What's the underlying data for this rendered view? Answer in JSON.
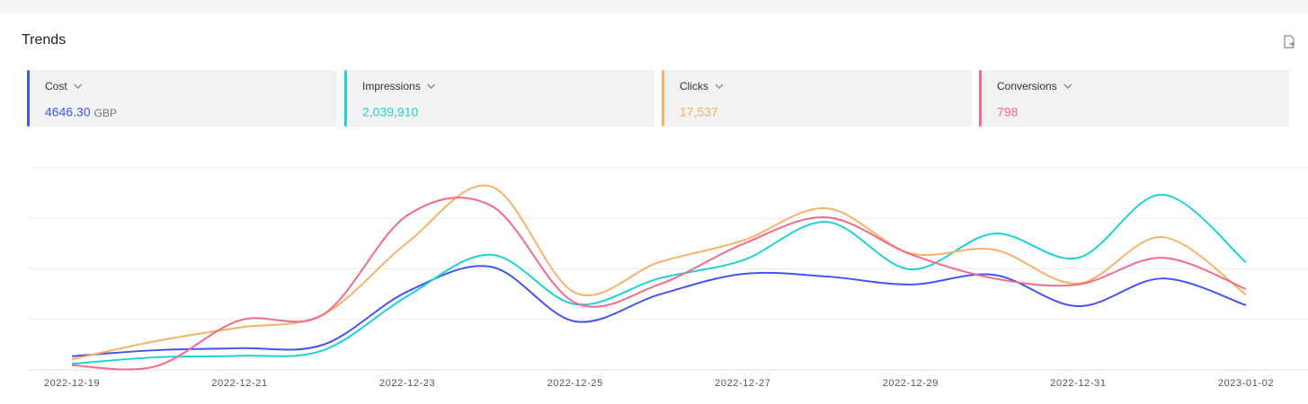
{
  "chart_data": {
    "type": "line",
    "title": "Trends",
    "categories": [
      "2022-12-19",
      null,
      "2022-12-21",
      null,
      "2022-12-23",
      null,
      "2022-12-25",
      null,
      "2022-12-27",
      null,
      "2022-12-29",
      null,
      "2022-12-31",
      null,
      "2023-01-02"
    ],
    "series": [
      {
        "name": "Cost",
        "color": "#4355f0",
        "values": [
          0.27,
          0.39,
          0.43,
          0.5,
          1.55,
          2.04,
          0.96,
          1.49,
          1.9,
          1.85,
          1.69,
          1.88,
          1.26,
          1.81,
          1.28
        ]
      },
      {
        "name": "Impressions",
        "color": "#1fd0d6",
        "values": [
          0.12,
          0.25,
          0.28,
          0.39,
          1.46,
          2.28,
          1.3,
          1.81,
          2.17,
          2.93,
          1.99,
          2.7,
          2.22,
          3.47,
          2.13
        ]
      },
      {
        "name": "Clicks",
        "color": "#f7b26a",
        "values": [
          0.21,
          0.57,
          0.84,
          1.1,
          2.52,
          3.63,
          1.53,
          2.13,
          2.56,
          3.2,
          2.31,
          2.38,
          1.71,
          2.63,
          1.49
        ]
      },
      {
        "name": "Conversions",
        "color": "#f46b89",
        "values": [
          0.09,
          0.07,
          0.98,
          1.1,
          3.06,
          3.25,
          1.33,
          1.69,
          2.49,
          3.02,
          2.29,
          1.81,
          1.69,
          2.22,
          1.6
        ]
      }
    ],
    "ylim": [
      0,
      4
    ],
    "grid": true
  },
  "kpis": [
    {
      "value": "4646.30",
      "unit": "GBP"
    },
    {
      "value": "2,039,910"
    },
    {
      "value": "17,537"
    },
    {
      "value": "798"
    }
  ]
}
